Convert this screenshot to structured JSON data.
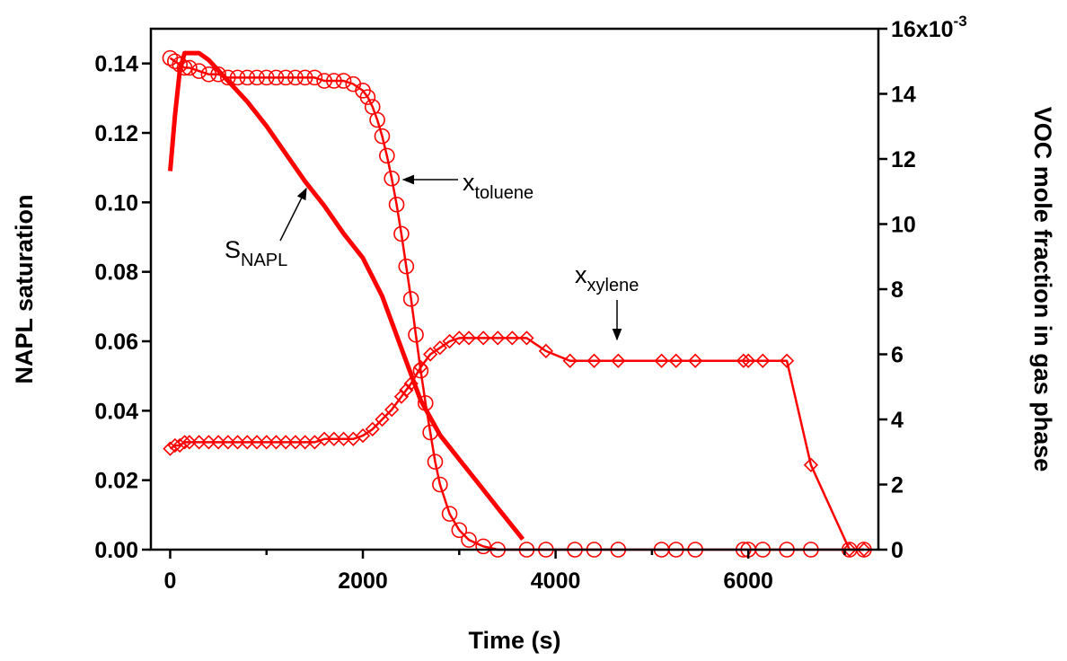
{
  "chart_data": {
    "type": "line",
    "x_label": "Time (s)",
    "y_label": "NAPL saturation",
    "y2_label": "VOC mole fraction in gas phase",
    "xlim": [
      -200,
      7350
    ],
    "xticks": [
      0,
      2000,
      4000,
      6000
    ],
    "x_minor_ticks": [
      1000,
      3000,
      5000,
      7000
    ],
    "ylim": [
      0,
      0.15
    ],
    "yticks": [
      {
        "value": 0,
        "label": "0.00"
      },
      {
        "value": 0.02,
        "label": "0.02"
      },
      {
        "value": 0.04,
        "label": "0.04"
      },
      {
        "value": 0.06,
        "label": "0.06"
      },
      {
        "value": 0.08,
        "label": "0.08"
      },
      {
        "value": 0.1,
        "label": "0.10"
      },
      {
        "value": 0.12,
        "label": "0.12"
      },
      {
        "value": 0.14,
        "label": "0.14"
      }
    ],
    "y2lim": [
      0,
      0.016
    ],
    "y2ticks": [
      {
        "value": 0,
        "label": "0"
      },
      {
        "value": 0.002,
        "label": "2"
      },
      {
        "value": 0.004,
        "label": "4"
      },
      {
        "value": 0.006,
        "label": "6"
      },
      {
        "value": 0.008,
        "label": "8"
      },
      {
        "value": 0.01,
        "label": "10"
      },
      {
        "value": 0.012,
        "label": "12"
      },
      {
        "value": 0.014,
        "label": "14"
      },
      {
        "value": 0.016,
        "label": "16x10"
      }
    ],
    "y2_exponent": "-3",
    "series": [
      {
        "name": "S",
        "name_sub": "NAPL",
        "color": "#ff0000",
        "axis": "y",
        "marker": "none",
        "x": [
          0,
          50,
          100,
          150,
          300,
          400,
          600,
          800,
          1000,
          1200,
          1400,
          1600,
          1800,
          2000,
          2200,
          2400,
          2600,
          2800,
          3000,
          3200,
          3400,
          3660
        ],
        "values": [
          0.109,
          0.125,
          0.138,
          0.143,
          0.143,
          0.141,
          0.135,
          0.129,
          0.122,
          0.114,
          0.106,
          0.099,
          0.091,
          0.084,
          0.073,
          0.058,
          0.043,
          0.033,
          0.026,
          0.019,
          0.012,
          0.003
        ]
      },
      {
        "name": "x",
        "name_sub": "toluene",
        "color": "#ff0000",
        "axis": "y2",
        "marker": "circle",
        "x": [
          0,
          50,
          100,
          150,
          200,
          300,
          400,
          500,
          600,
          700,
          800,
          900,
          1000,
          1100,
          1200,
          1300,
          1400,
          1500,
          1600,
          1700,
          1800,
          1900,
          2000,
          2050,
          2100,
          2150,
          2200,
          2250,
          2300,
          2350,
          2400,
          2450,
          2500,
          2550,
          2600,
          2650,
          2700,
          2750,
          2800,
          2900,
          3000,
          3100,
          3250,
          3400,
          3700,
          3900,
          4200,
          4400,
          4650,
          5100,
          5250,
          5450,
          5950,
          6000,
          6150,
          6400,
          6650,
          7050,
          7200
        ],
        "values": [
          0.0151,
          0.015,
          0.0149,
          0.0148,
          0.0148,
          0.0147,
          0.0146,
          0.0146,
          0.0145,
          0.0145,
          0.0145,
          0.0145,
          0.0145,
          0.0145,
          0.0145,
          0.0145,
          0.0145,
          0.0145,
          0.0144,
          0.0144,
          0.0144,
          0.0143,
          0.0141,
          0.0139,
          0.0136,
          0.0132,
          0.0127,
          0.0121,
          0.0114,
          0.0106,
          0.0097,
          0.0087,
          0.0077,
          0.0066,
          0.0055,
          0.0045,
          0.0036,
          0.0027,
          0.002,
          0.0011,
          0.0006,
          0.0003,
          0.0001,
          0,
          0,
          0,
          0,
          0,
          0,
          0,
          0,
          0,
          0,
          0,
          0,
          0,
          0,
          0,
          0
        ]
      },
      {
        "name": "x",
        "name_sub": "xylene",
        "color": "#ff0000",
        "axis": "y2",
        "marker": "diamond",
        "x": [
          0,
          50,
          100,
          150,
          200,
          300,
          400,
          500,
          600,
          700,
          800,
          900,
          1000,
          1100,
          1200,
          1300,
          1400,
          1500,
          1600,
          1700,
          1800,
          1900,
          2000,
          2100,
          2200,
          2300,
          2400,
          2450,
          2500,
          2600,
          2700,
          2800,
          2900,
          3000,
          3100,
          3250,
          3400,
          3550,
          3700,
          3900,
          4150,
          4400,
          4650,
          5100,
          5250,
          5450,
          5950,
          6000,
          6150,
          6400,
          6650,
          7050,
          7200
        ],
        "values": [
          0.0031,
          0.0032,
          0.0032,
          0.0033,
          0.0033,
          0.0033,
          0.0033,
          0.0033,
          0.0033,
          0.0033,
          0.0033,
          0.0033,
          0.0033,
          0.0033,
          0.0033,
          0.0033,
          0.0033,
          0.0033,
          0.0034,
          0.0034,
          0.0034,
          0.0034,
          0.0035,
          0.0037,
          0.004,
          0.0043,
          0.0047,
          0.0049,
          0.0051,
          0.0056,
          0.006,
          0.0062,
          0.0064,
          0.0065,
          0.0065,
          0.0065,
          0.0065,
          0.0065,
          0.0065,
          0.0061,
          0.0058,
          0.0058,
          0.0058,
          0.0058,
          0.0058,
          0.0058,
          0.0058,
          0.0058,
          0.0058,
          0.0058,
          0.0026,
          0,
          0
        ]
      }
    ]
  }
}
